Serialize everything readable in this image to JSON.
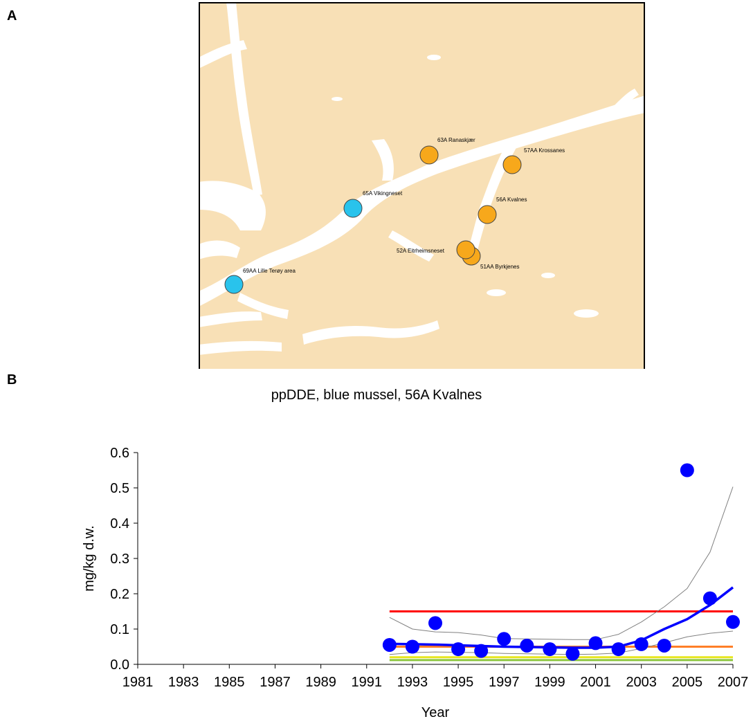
{
  "panels": {
    "a_label": "A",
    "b_label": "B"
  },
  "map": {
    "stations": [
      {
        "label": "63A Ranaskjær",
        "color": "#f7a81b"
      },
      {
        "label": "57AA Krossanes",
        "color": "#f7a81b"
      },
      {
        "label": "65A Vikingneset",
        "color": "#29c3ec"
      },
      {
        "label": "56A Kvalnes",
        "color": "#f7a81b"
      },
      {
        "label": "52A Eitrheimsneset",
        "color": "#f7a81b"
      },
      {
        "label": "51AA Byrkjenes",
        "color": "#f7a81b"
      },
      {
        "label": "69AA Lille Terøy area",
        "color": "#29c3ec"
      }
    ],
    "land_color": "#f8e0b6",
    "water_color": "#ffffff"
  },
  "chart_data": {
    "type": "scatter",
    "title": "ppDDE, blue mussel, 56A Kvalnes",
    "xlabel": "Year",
    "ylabel": "mg/kg d.w.",
    "xlim": [
      1981,
      2007
    ],
    "ylim": [
      0,
      0.6
    ],
    "x_ticks": [
      "1981",
      "1983",
      "1985",
      "1987",
      "1989",
      "1991",
      "1993",
      "1995",
      "1997",
      "1999",
      "2001",
      "2003",
      "2005",
      "2007"
    ],
    "y_ticks": [
      "0.0",
      "0.1",
      "0.2",
      "0.3",
      "0.4",
      "0.5",
      "0.6"
    ],
    "grid": false,
    "series": [
      {
        "kind": "points",
        "color": "#0000ff",
        "x": [
          1992,
          1993,
          1994,
          1995,
          1996,
          1997,
          1998,
          1999,
          2000,
          2001,
          2002,
          2003,
          2004,
          2005,
          2006,
          2007
        ],
        "y": [
          0.055,
          0.05,
          0.117,
          0.043,
          0.038,
          0.072,
          0.053,
          0.043,
          0.03,
          0.06,
          0.043,
          0.057,
          0.053,
          0.55,
          0.187,
          0.12
        ]
      },
      {
        "kind": "trend",
        "color": "#0000ff",
        "x": [
          1992,
          1993,
          1994,
          1995,
          1996,
          1997,
          1998,
          1999,
          2000,
          2001,
          2002,
          2003,
          2004,
          2005,
          2006,
          2007
        ],
        "y": [
          0.058,
          0.057,
          0.056,
          0.054,
          0.052,
          0.05,
          0.049,
          0.048,
          0.047,
          0.047,
          0.05,
          0.068,
          0.1,
          0.128,
          0.168,
          0.218
        ]
      },
      {
        "kind": "ci-upper",
        "color": "#808080",
        "x": [
          1992,
          1993,
          1994,
          1995,
          1996,
          1997,
          1998,
          1999,
          2000,
          2001,
          2002,
          2003,
          2004,
          2005,
          2006,
          2007
        ],
        "y": [
          0.133,
          0.1,
          0.092,
          0.09,
          0.083,
          0.073,
          0.072,
          0.071,
          0.07,
          0.07,
          0.085,
          0.12,
          0.163,
          0.215,
          0.318,
          0.503
        ]
      },
      {
        "kind": "ci-lower",
        "color": "#808080",
        "x": [
          1992,
          1993,
          1994,
          1995,
          1996,
          1997,
          1998,
          1999,
          2000,
          2001,
          2002,
          2003,
          2004,
          2005,
          2006,
          2007
        ],
        "y": [
          0.028,
          0.033,
          0.035,
          0.034,
          0.033,
          0.031,
          0.03,
          0.029,
          0.028,
          0.029,
          0.032,
          0.045,
          0.061,
          0.078,
          0.088,
          0.094
        ]
      },
      {
        "kind": "class-limit",
        "color": "#ff0000",
        "x": [
          1992,
          2007
        ],
        "y": [
          0.15,
          0.15
        ]
      },
      {
        "kind": "class-limit",
        "color": "#ff7f27",
        "x": [
          1992,
          2007
        ],
        "y": [
          0.05,
          0.05
        ]
      },
      {
        "kind": "class-limit",
        "color": "#e6e61e",
        "x": [
          1992,
          2007
        ],
        "y": [
          0.02,
          0.02
        ]
      },
      {
        "kind": "class-limit",
        "color": "#8cc63f",
        "x": [
          1992,
          2007
        ],
        "y": [
          0.012,
          0.012
        ]
      }
    ]
  }
}
